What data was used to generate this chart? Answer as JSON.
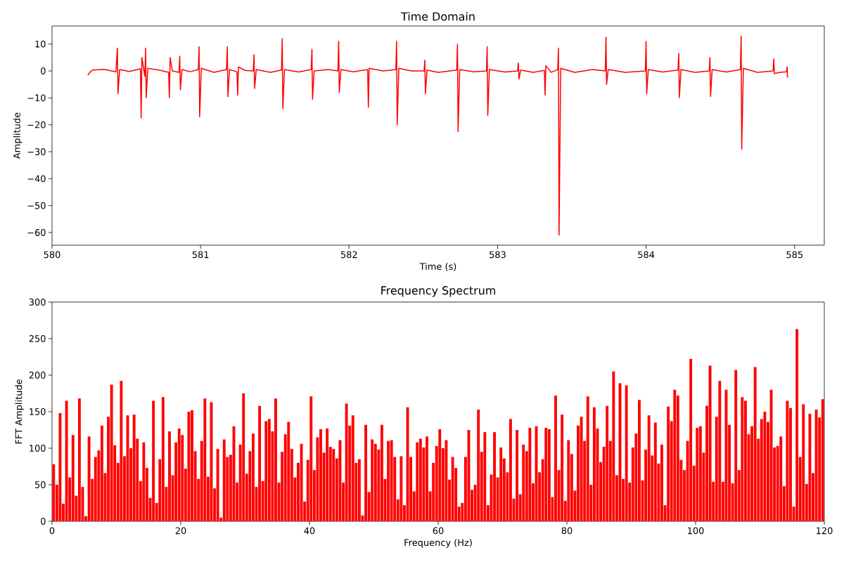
{
  "chart_data": [
    {
      "type": "line",
      "title": "Time Domain",
      "xlabel": "Time (s)",
      "ylabel": "Amplitude",
      "color": "#ff0000",
      "xlim": [
        580.0,
        585.2
      ],
      "ylim": [
        -64.7,
        16.7
      ],
      "xticks": [
        580,
        581,
        582,
        583,
        584,
        585
      ],
      "yticks": [
        {
          "value": -60,
          "label": "−60"
        },
        {
          "value": -50,
          "label": "−50"
        },
        {
          "value": -40,
          "label": "−40"
        },
        {
          "value": -30,
          "label": "−30"
        },
        {
          "value": -20,
          "label": "−20"
        },
        {
          "value": -10,
          "label": "−10"
        },
        0,
        10
      ],
      "x": [
        580.24,
        580.27,
        580.35,
        580.43,
        580.44,
        580.444,
        580.455,
        580.52,
        580.595,
        580.6,
        580.605,
        580.625,
        580.63,
        580.634,
        580.645,
        580.72,
        580.785,
        580.79,
        580.795,
        580.81,
        580.855,
        580.86,
        580.864,
        580.875,
        580.93,
        580.985,
        580.99,
        580.994,
        581.005,
        581.09,
        581.175,
        581.18,
        581.184,
        581.195,
        581.245,
        581.25,
        581.255,
        581.3,
        581.355,
        581.36,
        581.364,
        581.375,
        581.47,
        581.545,
        581.55,
        581.554,
        581.565,
        581.66,
        581.745,
        581.75,
        581.754,
        581.765,
        581.86,
        581.925,
        581.93,
        581.934,
        581.945,
        582.03,
        582.125,
        582.13,
        582.135,
        582.23,
        582.315,
        582.32,
        582.324,
        582.335,
        582.42,
        582.505,
        582.51,
        582.514,
        582.525,
        582.6,
        582.725,
        582.73,
        582.734,
        582.745,
        582.84,
        582.925,
        582.93,
        582.934,
        582.945,
        583.05,
        583.135,
        583.14,
        583.144,
        583.155,
        583.24,
        583.315,
        583.32,
        583.325,
        583.36,
        583.405,
        583.41,
        583.414,
        583.425,
        583.52,
        583.64,
        583.725,
        583.73,
        583.734,
        583.745,
        583.86,
        583.995,
        584.0,
        584.004,
        584.015,
        584.11,
        584.215,
        584.22,
        584.224,
        584.235,
        584.33,
        584.425,
        584.43,
        584.434,
        584.445,
        584.54,
        584.635,
        584.64,
        584.644,
        584.655,
        584.75,
        584.855,
        584.86,
        584.864,
        584.9,
        584.945,
        584.95,
        584.952
      ],
      "values": [
        -1.5,
        0.3,
        0.6,
        -0.3,
        8.5,
        -8.5,
        0.5,
        -0.2,
        0.8,
        -17.5,
        5,
        -2,
        8.5,
        -10,
        1,
        0.3,
        -0.5,
        -10,
        5,
        0,
        -0.5,
        5.5,
        -7,
        0.5,
        -0.3,
        0.5,
        9,
        -17,
        1,
        -0.5,
        0.5,
        9,
        -9.5,
        0.5,
        -0.3,
        -9,
        1.5,
        0.2,
        0,
        6,
        -6.5,
        0.5,
        -0.5,
        0.3,
        12,
        -14,
        0.5,
        -0.4,
        0.5,
        8,
        -10.5,
        0,
        0.5,
        0,
        11,
        -8,
        0.5,
        -0.3,
        0.5,
        -13.5,
        1,
        0,
        0.5,
        11,
        -20,
        1,
        0,
        0,
        4,
        -8.5,
        0.3,
        -0.5,
        0.3,
        10,
        -22.5,
        0.5,
        -0.3,
        0,
        9,
        -16.5,
        0.5,
        -0.4,
        0,
        3,
        -3,
        0.3,
        -0.5,
        0.2,
        -9,
        2,
        -0.5,
        0.5,
        8.5,
        -61,
        1,
        -0.5,
        0.5,
        0,
        12.5,
        -5,
        0.5,
        -0.5,
        0,
        11,
        -8.5,
        0.5,
        -0.4,
        0.3,
        6.5,
        -10,
        0.5,
        -0.5,
        0,
        5,
        -9.5,
        0.5,
        -0.4,
        0.5,
        13,
        -29,
        1,
        -0.5,
        0,
        4.5,
        -1,
        -0.5,
        -0.3,
        1.5,
        -2.5
      ]
    },
    {
      "type": "bar",
      "title": "Frequency Spectrum",
      "xlabel": "Frequency (Hz)",
      "ylabel": "FFT Amplitude",
      "color": "#ff0000",
      "xlim": [
        0,
        120
      ],
      "ylim": [
        0,
        300
      ],
      "xticks": [
        0,
        20,
        40,
        60,
        80,
        100,
        120
      ],
      "yticks": [
        0,
        50,
        100,
        150,
        200,
        250,
        300
      ],
      "x": [
        0.25,
        0.75,
        1.25,
        1.75,
        2.25,
        2.75,
        3.25,
        3.75,
        4.25,
        4.75,
        5.25,
        5.75,
        6.25,
        6.75,
        7.25,
        7.75,
        8.25,
        8.75,
        9.25,
        9.75,
        10.25,
        10.75,
        11.25,
        11.75,
        12.25,
        12.75,
        13.25,
        13.75,
        14.25,
        14.75,
        15.25,
        15.75,
        16.25,
        16.75,
        17.25,
        17.75,
        18.25,
        18.75,
        19.25,
        19.75,
        20.25,
        20.75,
        21.25,
        21.75,
        22.25,
        22.75,
        23.25,
        23.75,
        24.25,
        24.75,
        25.25,
        25.75,
        26.25,
        26.75,
        27.25,
        27.75,
        28.25,
        28.75,
        29.25,
        29.75,
        30.25,
        30.75,
        31.25,
        31.75,
        32.25,
        32.75,
        33.25,
        33.75,
        34.25,
        34.75,
        35.25,
        35.75,
        36.25,
        36.75,
        37.25,
        37.75,
        38.25,
        38.75,
        39.25,
        39.75,
        40.25,
        40.75,
        41.25,
        41.75,
        42.25,
        42.75,
        43.25,
        43.75,
        44.25,
        44.75,
        45.25,
        45.75,
        46.25,
        46.75,
        47.25,
        47.75,
        48.25,
        48.75,
        49.25,
        49.75,
        50.25,
        50.75,
        51.25,
        51.75,
        52.25,
        52.75,
        53.25,
        53.75,
        54.25,
        54.75,
        55.25,
        55.75,
        56.25,
        56.75,
        57.25,
        57.75,
        58.25,
        58.75,
        59.25,
        59.75,
        60.25,
        60.75,
        61.25,
        61.75,
        62.25,
        62.75,
        63.25,
        63.75,
        64.25,
        64.75,
        65.25,
        65.75,
        66.25,
        66.75,
        67.25,
        67.75,
        68.25,
        68.75,
        69.25,
        69.75,
        70.25,
        70.75,
        71.25,
        71.75,
        72.25,
        72.75,
        73.25,
        73.75,
        74.25,
        74.75,
        75.25,
        75.75,
        76.25,
        76.75,
        77.25,
        77.75,
        78.25,
        78.75,
        79.25,
        79.75,
        80.25,
        80.75,
        81.25,
        81.75,
        82.25,
        82.75,
        83.25,
        83.75,
        84.25,
        84.75,
        85.25,
        85.75,
        86.25,
        86.75,
        87.25,
        87.75,
        88.25,
        88.75,
        89.25,
        89.75,
        90.25,
        90.75,
        91.25,
        91.75,
        92.25,
        92.75,
        93.25,
        93.75,
        94.25,
        94.75,
        95.25,
        95.75,
        96.25,
        96.75,
        97.25,
        97.75,
        98.25,
        98.75,
        99.25,
        99.75,
        100.25,
        100.75,
        101.25,
        101.75,
        102.25,
        102.75,
        103.25,
        103.75,
        104.25,
        104.75,
        105.25,
        105.75,
        106.25,
        106.75,
        107.25,
        107.75,
        108.25,
        108.75,
        109.25,
        109.75,
        110.25,
        110.75,
        111.25,
        111.75,
        112.25,
        112.75,
        113.25,
        113.75,
        114.25,
        114.75,
        115.25,
        115.75,
        116.25,
        116.75,
        117.25,
        117.75,
        118.25,
        118.75,
        119.25,
        119.75
      ],
      "values": [
        78,
        50,
        148,
        24,
        165,
        60,
        118,
        35,
        168,
        47,
        7,
        116,
        58,
        88,
        97,
        131,
        66,
        143,
        187,
        104,
        80,
        192,
        89,
        145,
        100,
        146,
        113,
        55,
        108,
        73,
        32,
        165,
        25,
        85,
        170,
        47,
        123,
        63,
        108,
        127,
        118,
        72,
        150,
        152,
        96,
        58,
        110,
        168,
        61,
        163,
        45,
        99,
        5,
        112,
        88,
        91,
        130,
        53,
        105,
        175,
        65,
        96,
        120,
        47,
        158,
        55,
        137,
        140,
        123,
        168,
        53,
        95,
        119,
        136,
        99,
        60,
        80,
        106,
        27,
        84,
        171,
        70,
        115,
        126,
        94,
        127,
        102,
        99,
        86,
        111,
        53,
        161,
        131,
        145,
        80,
        85,
        8,
        132,
        40,
        112,
        106,
        98,
        132,
        58,
        110,
        111,
        88,
        30,
        89,
        22,
        156,
        88,
        41,
        108,
        113,
        101,
        116,
        41,
        80,
        103,
        126,
        100,
        111,
        57,
        88,
        73,
        20,
        25,
        88,
        125,
        43,
        50,
        153,
        95,
        122,
        22,
        64,
        122,
        60,
        101,
        86,
        67,
        140,
        31,
        125,
        37,
        105,
        96,
        128,
        52,
        130,
        67,
        85,
        128,
        126,
        33,
        172,
        70,
        146,
        28,
        111,
        92,
        42,
        131,
        143,
        110,
        171,
        50,
        156,
        127,
        81,
        102,
        158,
        110,
        205,
        63,
        189,
        58,
        186,
        53,
        101,
        120,
        166,
        56,
        98,
        145,
        90,
        135,
        79,
        105,
        22,
        157,
        137,
        180,
        172,
        84,
        70,
        110,
        222,
        76,
        128,
        130,
        94,
        158,
        213,
        54,
        143,
        192,
        54,
        180,
        132,
        52,
        207,
        70,
        170,
        165,
        119,
        130,
        211,
        113,
        140,
        150,
        136,
        180,
        101,
        103,
        116,
        48,
        165,
        155,
        20,
        263,
        88,
        160,
        51,
        147,
        66,
        153,
        142,
        167
      ]
    }
  ]
}
